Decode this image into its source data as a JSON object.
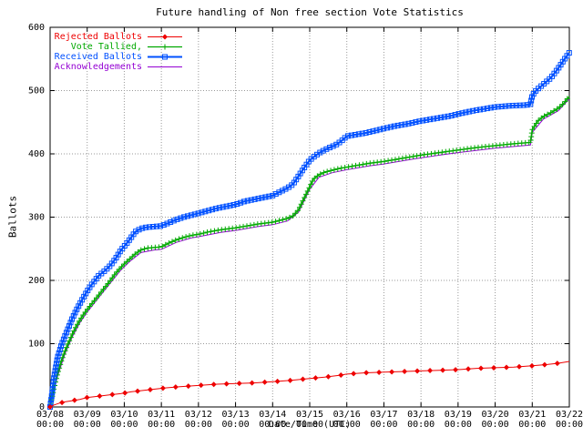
{
  "chart_data": {
    "type": "line",
    "title": "Future handling of Non free section Vote Statistics",
    "xlabel": "Date/Time (UTC)",
    "ylabel": "Ballots",
    "ylim": [
      0,
      600
    ],
    "y_ticks": [
      0,
      100,
      200,
      300,
      400,
      500,
      600
    ],
    "x_range_days": [
      0,
      14
    ],
    "x_tick_dates": [
      "03/08",
      "03/09",
      "03/10",
      "03/11",
      "03/12",
      "03/13",
      "03/14",
      "03/15",
      "03/16",
      "03/17",
      "03/18",
      "03/19",
      "03/20",
      "03/21",
      "03/22"
    ],
    "x_tick_time": "00:00",
    "grid": true,
    "legend_position": "top-left",
    "series": [
      {
        "name": "Rejected Ballots",
        "color": "#ee0000",
        "marker": "diamond",
        "line_width": 1,
        "points": [
          [
            0,
            0
          ],
          [
            0.1,
            3
          ],
          [
            0.25,
            6
          ],
          [
            0.4,
            8
          ],
          [
            0.6,
            10
          ],
          [
            0.8,
            12
          ],
          [
            1.0,
            15
          ],
          [
            1.3,
            17
          ],
          [
            1.6,
            19
          ],
          [
            1.9,
            21
          ],
          [
            2.2,
            24
          ],
          [
            2.5,
            26
          ],
          [
            2.8,
            28
          ],
          [
            3.1,
            30
          ],
          [
            3.5,
            32
          ],
          [
            4.0,
            34
          ],
          [
            4.5,
            36
          ],
          [
            5.0,
            37
          ],
          [
            5.5,
            38
          ],
          [
            6.0,
            40
          ],
          [
            6.5,
            42
          ],
          [
            7.0,
            45
          ],
          [
            7.4,
            47
          ],
          [
            7.8,
            50
          ],
          [
            8.0,
            52
          ],
          [
            8.5,
            54
          ],
          [
            9.0,
            55
          ],
          [
            9.5,
            56
          ],
          [
            10.0,
            57
          ],
          [
            10.5,
            58
          ],
          [
            11.0,
            59
          ],
          [
            11.5,
            61
          ],
          [
            12.0,
            62
          ],
          [
            12.5,
            63
          ],
          [
            13.0,
            65
          ],
          [
            13.4,
            67
          ],
          [
            13.7,
            69
          ],
          [
            14.0,
            72
          ]
        ]
      },
      {
        "name": "Vote Tallied,",
        "color": "#00a800",
        "marker": "plus",
        "line_width": 1.2,
        "points": [
          [
            0,
            0
          ],
          [
            0.1,
            28
          ],
          [
            0.2,
            52
          ],
          [
            0.3,
            72
          ],
          [
            0.4,
            88
          ],
          [
            0.5,
            102
          ],
          [
            0.6,
            115
          ],
          [
            0.7,
            127
          ],
          [
            0.8,
            137
          ],
          [
            0.9,
            146
          ],
          [
            1.0,
            154
          ],
          [
            1.15,
            165
          ],
          [
            1.3,
            176
          ],
          [
            1.45,
            187
          ],
          [
            1.6,
            198
          ],
          [
            1.75,
            210
          ],
          [
            1.9,
            220
          ],
          [
            2.0,
            226
          ],
          [
            2.15,
            234
          ],
          [
            2.3,
            242
          ],
          [
            2.45,
            248
          ],
          [
            2.6,
            251
          ],
          [
            2.8,
            252
          ],
          [
            3.0,
            253
          ],
          [
            3.2,
            259
          ],
          [
            3.4,
            264
          ],
          [
            3.6,
            268
          ],
          [
            3.8,
            271
          ],
          [
            4.0,
            273
          ],
          [
            4.3,
            277
          ],
          [
            4.6,
            280
          ],
          [
            5.0,
            283
          ],
          [
            5.3,
            286
          ],
          [
            5.6,
            289
          ],
          [
            6.0,
            292
          ],
          [
            6.2,
            295
          ],
          [
            6.4,
            298
          ],
          [
            6.55,
            302
          ],
          [
            6.7,
            312
          ],
          [
            6.85,
            330
          ],
          [
            7.0,
            348
          ],
          [
            7.1,
            360
          ],
          [
            7.25,
            367
          ],
          [
            7.4,
            371
          ],
          [
            7.6,
            374
          ],
          [
            7.8,
            377
          ],
          [
            8.0,
            379
          ],
          [
            8.3,
            382
          ],
          [
            8.6,
            385
          ],
          [
            9.0,
            388
          ],
          [
            9.4,
            392
          ],
          [
            9.8,
            396
          ],
          [
            10.0,
            398
          ],
          [
            10.5,
            402
          ],
          [
            11.0,
            406
          ],
          [
            11.5,
            410
          ],
          [
            12.0,
            413
          ],
          [
            12.5,
            416
          ],
          [
            12.95,
            418
          ],
          [
            13.0,
            438
          ],
          [
            13.15,
            452
          ],
          [
            13.3,
            459
          ],
          [
            13.5,
            465
          ],
          [
            13.7,
            472
          ],
          [
            13.85,
            480
          ],
          [
            14.0,
            491
          ]
        ]
      },
      {
        "name": "Received Ballots",
        "color": "#0050ff",
        "marker": "square",
        "line_width": 2,
        "points": [
          [
            0,
            0
          ],
          [
            0.05,
            20
          ],
          [
            0.1,
            45
          ],
          [
            0.2,
            78
          ],
          [
            0.3,
            97
          ],
          [
            0.4,
            112
          ],
          [
            0.5,
            126
          ],
          [
            0.6,
            140
          ],
          [
            0.7,
            152
          ],
          [
            0.8,
            163
          ],
          [
            0.9,
            173
          ],
          [
            1.0,
            183
          ],
          [
            1.1,
            192
          ],
          [
            1.2,
            199
          ],
          [
            1.3,
            207
          ],
          [
            1.45,
            214
          ],
          [
            1.6,
            222
          ],
          [
            1.75,
            233
          ],
          [
            1.9,
            247
          ],
          [
            2.0,
            254
          ],
          [
            2.1,
            261
          ],
          [
            2.2,
            269
          ],
          [
            2.3,
            277
          ],
          [
            2.45,
            282
          ],
          [
            2.6,
            284
          ],
          [
            2.8,
            285
          ],
          [
            3.0,
            286
          ],
          [
            3.2,
            291
          ],
          [
            3.4,
            296
          ],
          [
            3.6,
            300
          ],
          [
            3.8,
            303
          ],
          [
            4.0,
            306
          ],
          [
            4.25,
            310
          ],
          [
            4.5,
            314
          ],
          [
            4.75,
            317
          ],
          [
            5.0,
            320
          ],
          [
            5.25,
            325
          ],
          [
            5.5,
            328
          ],
          [
            5.75,
            331
          ],
          [
            6.0,
            334
          ],
          [
            6.2,
            340
          ],
          [
            6.4,
            346
          ],
          [
            6.55,
            352
          ],
          [
            6.7,
            365
          ],
          [
            6.85,
            378
          ],
          [
            7.0,
            390
          ],
          [
            7.15,
            397
          ],
          [
            7.3,
            403
          ],
          [
            7.5,
            409
          ],
          [
            7.7,
            414
          ],
          [
            7.85,
            420
          ],
          [
            8.0,
            428
          ],
          [
            8.2,
            430
          ],
          [
            8.5,
            433
          ],
          [
            8.8,
            437
          ],
          [
            9.0,
            440
          ],
          [
            9.3,
            444
          ],
          [
            9.6,
            447
          ],
          [
            10.0,
            452
          ],
          [
            10.4,
            456
          ],
          [
            10.8,
            460
          ],
          [
            11.0,
            463
          ],
          [
            11.4,
            468
          ],
          [
            11.8,
            472
          ],
          [
            12.0,
            474
          ],
          [
            12.4,
            476
          ],
          [
            12.8,
            477
          ],
          [
            12.95,
            478
          ],
          [
            13.0,
            492
          ],
          [
            13.1,
            500
          ],
          [
            13.3,
            510
          ],
          [
            13.5,
            520
          ],
          [
            13.7,
            535
          ],
          [
            13.85,
            548
          ],
          [
            14.0,
            560
          ]
        ]
      },
      {
        "name": "Acknowledgements",
        "color": "#9400d3",
        "marker": "none",
        "line_width": 1,
        "points": [
          [
            0,
            0
          ],
          [
            0.2,
            48
          ],
          [
            0.4,
            84
          ],
          [
            0.6,
            111
          ],
          [
            0.8,
            133
          ],
          [
            1.0,
            150
          ],
          [
            1.3,
            172
          ],
          [
            1.6,
            194
          ],
          [
            1.9,
            216
          ],
          [
            2.15,
            230
          ],
          [
            2.45,
            244
          ],
          [
            2.8,
            248
          ],
          [
            3.0,
            249
          ],
          [
            3.4,
            260
          ],
          [
            3.8,
            267
          ],
          [
            4.0,
            269
          ],
          [
            4.6,
            276
          ],
          [
            5.0,
            279
          ],
          [
            5.6,
            285
          ],
          [
            6.0,
            288
          ],
          [
            6.4,
            294
          ],
          [
            6.7,
            308
          ],
          [
            6.85,
            326
          ],
          [
            7.0,
            344
          ],
          [
            7.25,
            363
          ],
          [
            7.6,
            370
          ],
          [
            8.0,
            375
          ],
          [
            8.6,
            381
          ],
          [
            9.0,
            384
          ],
          [
            9.8,
            392
          ],
          [
            10.5,
            398
          ],
          [
            11.0,
            402
          ],
          [
            12.0,
            409
          ],
          [
            12.95,
            414
          ],
          [
            13.0,
            434
          ],
          [
            13.3,
            455
          ],
          [
            13.7,
            468
          ],
          [
            14.0,
            487
          ]
        ]
      }
    ]
  },
  "colors": {
    "axis": "#000000",
    "grid": "#9a9a9a",
    "background": "#ffffff"
  }
}
